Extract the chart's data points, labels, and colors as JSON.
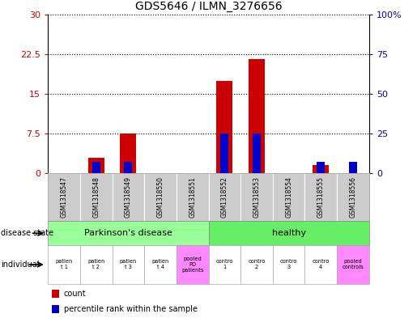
{
  "title": "GDS5646 / ILMN_3276656",
  "samples": [
    "GSM1318547",
    "GSM1318548",
    "GSM1318549",
    "GSM1318550",
    "GSM1318551",
    "GSM1318552",
    "GSM1318553",
    "GSM1318554",
    "GSM1318555",
    "GSM1318556"
  ],
  "count_values": [
    0,
    3,
    7.5,
    0,
    0,
    17.5,
    21.5,
    0,
    1.5,
    0
  ],
  "percentile_values": [
    0,
    7,
    7,
    0,
    0,
    25,
    25,
    0,
    7,
    7
  ],
  "left_ylim": [
    0,
    30
  ],
  "right_ylim": [
    0,
    100
  ],
  "left_yticks": [
    0,
    7.5,
    15,
    22.5,
    30
  ],
  "left_yticklabels": [
    "0",
    "7.5",
    "15",
    "22.5",
    "30"
  ],
  "right_yticks": [
    0,
    25,
    50,
    75,
    100
  ],
  "right_yticklabels": [
    "0",
    "25",
    "50",
    "75",
    "100%"
  ],
  "bar_color_red": "#cc0000",
  "bar_color_blue": "#0000cc",
  "left_tick_color": "#cc0000",
  "right_tick_color": "#0000cc",
  "disease_state_groups": [
    {
      "label": "Parkinson's disease",
      "start": 0,
      "end": 4,
      "color": "#99ff99"
    },
    {
      "label": "healthy",
      "start": 5,
      "end": 9,
      "color": "#66ee66"
    }
  ],
  "individual_labels": [
    "patien\nt 1",
    "patien\nt 2",
    "patien\nt 3",
    "patien\nt 4",
    "pooled\nPD\npatients",
    "contro\n1",
    "contro\n2",
    "contro\n3",
    "contro\n4",
    "pooled\ncontrols"
  ],
  "individual_colors": [
    "#ffffff",
    "#ffffff",
    "#ffffff",
    "#ffffff",
    "#ff88ff",
    "#ffffff",
    "#ffffff",
    "#ffffff",
    "#ffffff",
    "#ff88ff"
  ],
  "gsm_label_bg": "#cccccc",
  "disease_state_label": "disease state",
  "individual_label": "individual",
  "legend_count_label": "count",
  "legend_percentile_label": "percentile rank within the sample",
  "bar_width": 0.5,
  "blue_bar_width": 0.25,
  "fig_width": 5.15,
  "fig_height": 3.93,
  "dpi": 100
}
